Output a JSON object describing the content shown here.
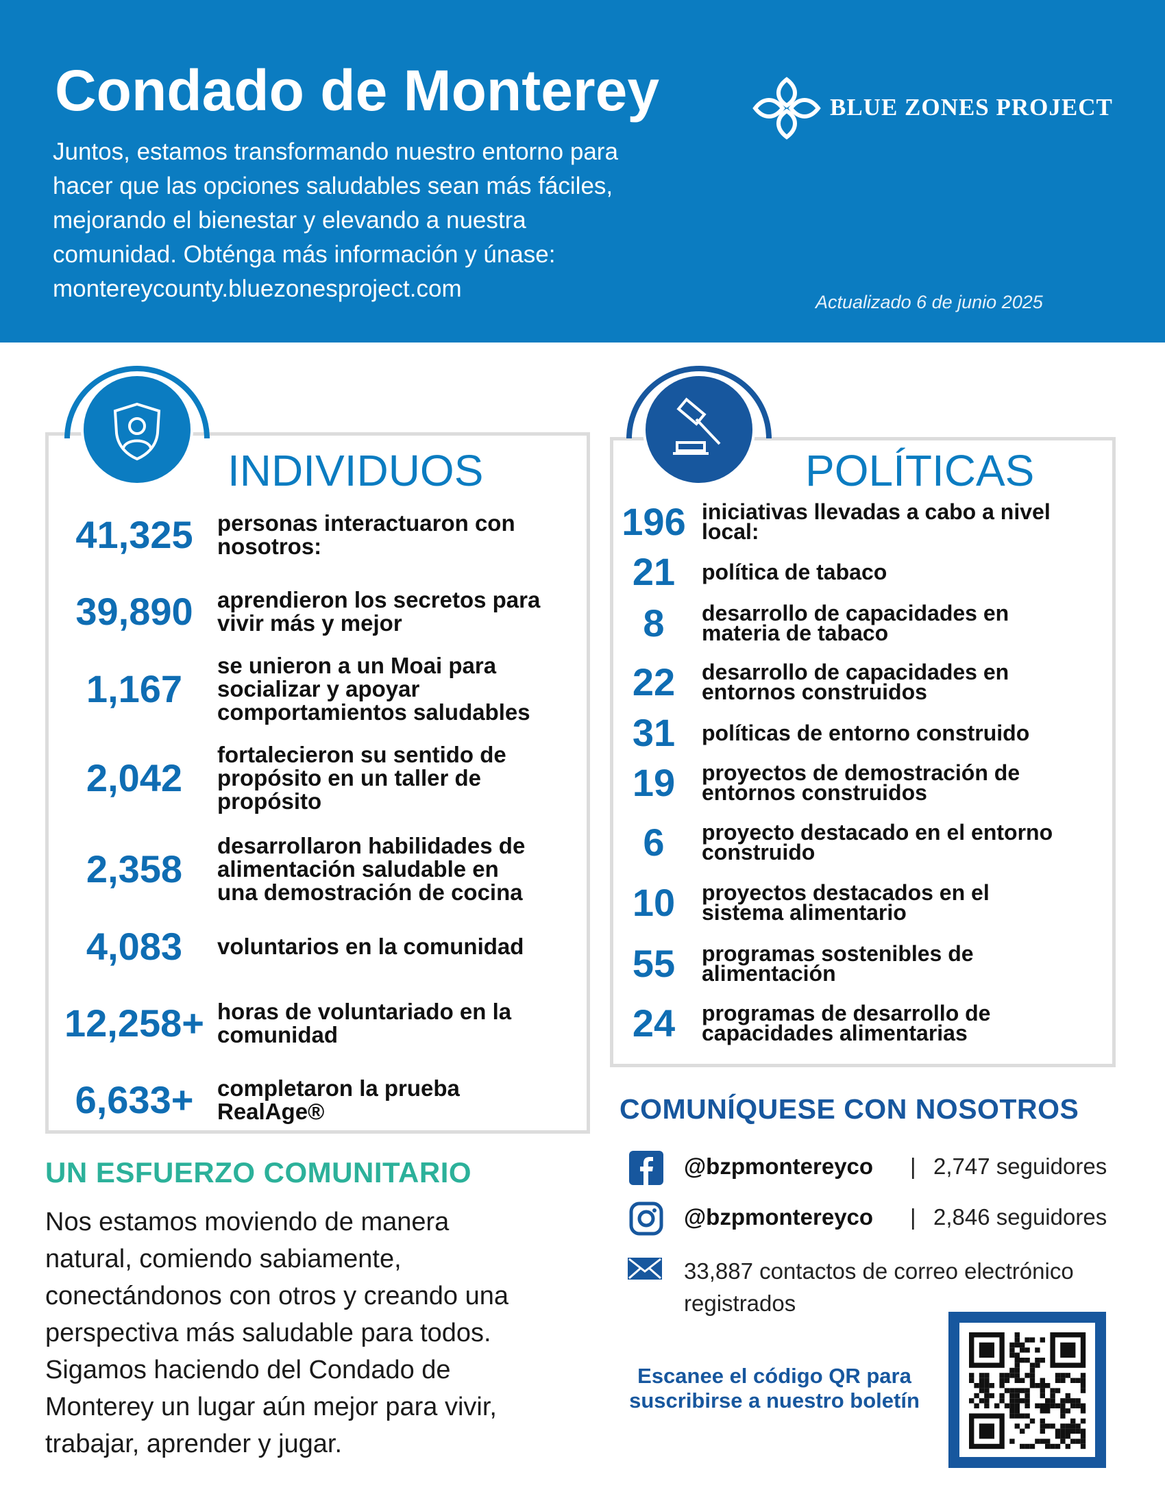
{
  "header": {
    "title": "Condado de Monterey",
    "description_lines": [
      "Juntos, estamos transformando nuestro entorno para",
      "hacer que las opciones saludables sean más fáciles,",
      "mejorando el bienestar y elevando a nuestra",
      "comunidad. Obténga más información y únase:",
      "montereycounty.bluezonesproject.com"
    ],
    "logo": "BLUE ZONES PROJECT",
    "updated": "Actualizado 6 de junio 2025"
  },
  "individuals": {
    "heading": "INDIVIDUOS",
    "stats": [
      {
        "value": "41,325",
        "lines": [
          "personas interactuaron con",
          "nosotros:"
        ]
      },
      {
        "value": "39,890",
        "lines": [
          "aprendieron los secretos para",
          "vivir más y mejor"
        ]
      },
      {
        "value": "1,167",
        "lines": [
          "se unieron a un Moai para",
          "socializar y apoyar",
          "comportamientos saludables"
        ]
      },
      {
        "value": "2,042",
        "lines": [
          "fortalecieron su sentido de",
          "propósito en un taller de",
          "propósito"
        ]
      },
      {
        "value": "2,358",
        "lines": [
          "desarrollaron habilidades de",
          "alimentación saludable en",
          "una demostración de cocina"
        ]
      },
      {
        "value": "4,083",
        "lines": [
          "voluntarios en la comunidad"
        ]
      },
      {
        "value": "12,258+",
        "lines": [
          "horas de voluntariado en la",
          "comunidad"
        ]
      },
      {
        "value": "6,633+",
        "lines": [
          "completaron la prueba",
          "RealAge®"
        ]
      }
    ]
  },
  "policies": {
    "heading": "POLÍTICAS",
    "stats": [
      {
        "value": "196",
        "lines": [
          "iniciativas llevadas a cabo a nivel",
          "local:"
        ]
      },
      {
        "value": "21",
        "lines": [
          "política de tabaco"
        ]
      },
      {
        "value": "8",
        "lines": [
          "desarrollo de capacidades en",
          "materia de tabaco"
        ]
      },
      {
        "value": "22",
        "lines": [
          "desarrollo de capacidades en",
          "entornos construidos"
        ]
      },
      {
        "value": "31",
        "lines": [
          "políticas de entorno construido"
        ]
      },
      {
        "value": "19",
        "lines": [
          "proyectos de demostración de",
          "entornos construidos"
        ]
      },
      {
        "value": "6",
        "lines": [
          "proyecto destacado en el entorno",
          "construido"
        ]
      },
      {
        "value": "10",
        "lines": [
          "proyectos destacados en el",
          "sistema alimentario"
        ]
      },
      {
        "value": "55",
        "lines": [
          "programas sostenibles de",
          "alimentación"
        ]
      },
      {
        "value": "24",
        "lines": [
          "programas de desarrollo de",
          "capacidades alimentarias"
        ]
      }
    ]
  },
  "community": {
    "heading": "UN ESFUERZO COMUNITARIO",
    "lines": [
      "Nos estamos moviendo de manera",
      "natural, comiendo sabiamente,",
      "conectándonos con otros y creando una",
      "perspectiva más saludable para todos.",
      "Sigamos haciendo del Condado de",
      "Monterey un lugar aún mejor para vivir,",
      "trabajar, aprender y jugar."
    ]
  },
  "contact": {
    "heading": "COMUNÍQUESE CON NOSOTROS",
    "facebook": {
      "handle": "@bzpmontereyco",
      "separator": "|",
      "followers": "2,747 seguidores"
    },
    "instagram": {
      "handle": "@bzpmontereyco",
      "separator": "|",
      "followers": "2,846 seguidores"
    },
    "email_lines": [
      "33,887 contactos de correo electrónico",
      "registrados"
    ],
    "qr_lines": [
      "Escanee el código QR para",
      "suscribirse a nuestro boletín"
    ]
  }
}
